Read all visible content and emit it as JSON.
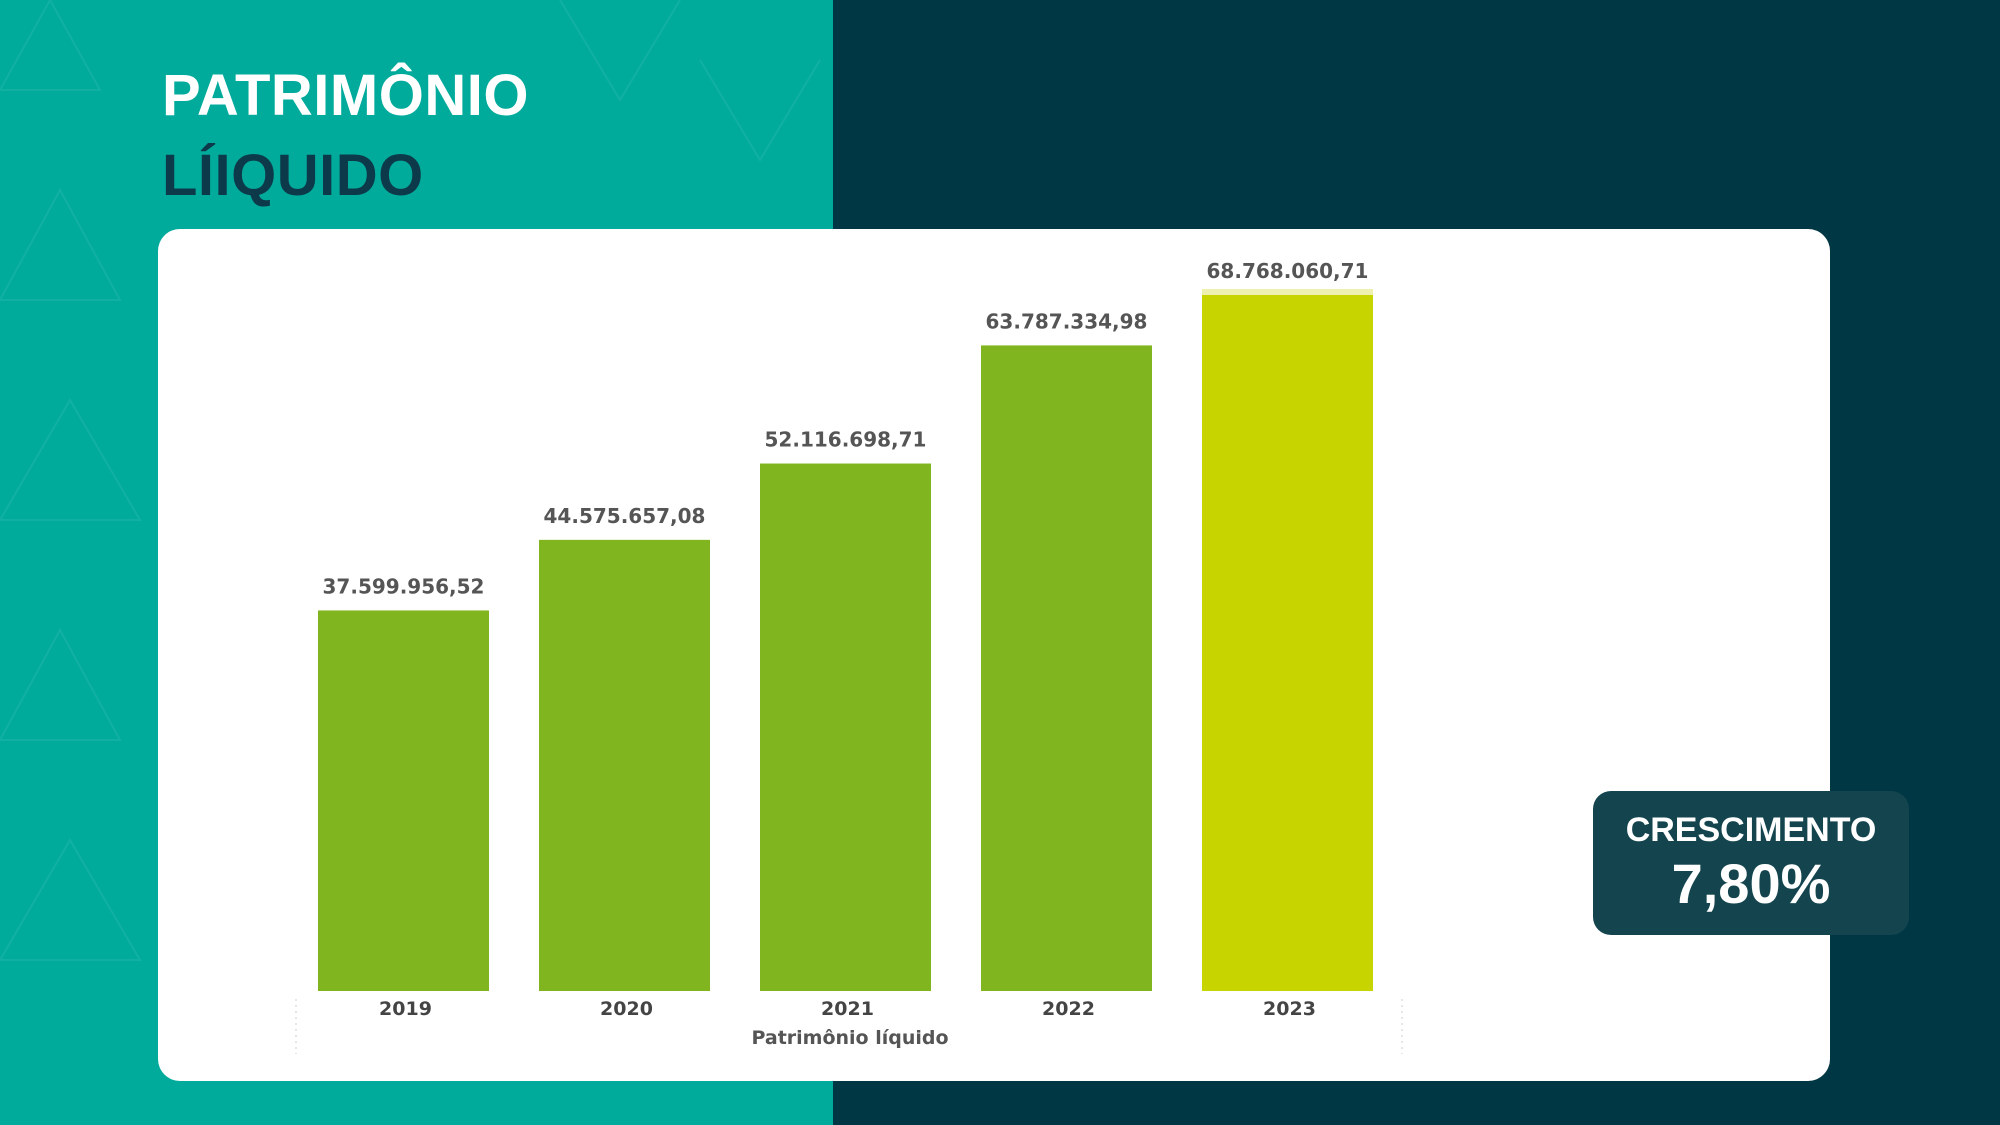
{
  "slide": {
    "title_line1": "PATRIMÔNIO",
    "title_line2": "LÍIQUIDO"
  },
  "growth": {
    "label": "CRESCIMENTO",
    "value": "7,80%"
  },
  "colors": {
    "teal": "#00ab9c",
    "dark": "#003745",
    "bar_green": "#80b51f",
    "bar_highlight": "#c8d400",
    "growth_box": "#14454f"
  },
  "chart_data": {
    "type": "bar",
    "categories": [
      "2019",
      "2020",
      "2021",
      "2022",
      "2023"
    ],
    "values": [
      37599956.52,
      44575657.08,
      52116698.71,
      63787334.98,
      68768060.71
    ],
    "value_labels": [
      "37.599.956,52",
      "44.575.657,08",
      "52.116.698,71",
      "63.787.334,98",
      "68.768.060,71"
    ],
    "highlight_index": 4,
    "xlabel": "Patrimônio líquido",
    "ylabel": "",
    "ylim": [
      0,
      68768060.71
    ],
    "grid": false
  }
}
